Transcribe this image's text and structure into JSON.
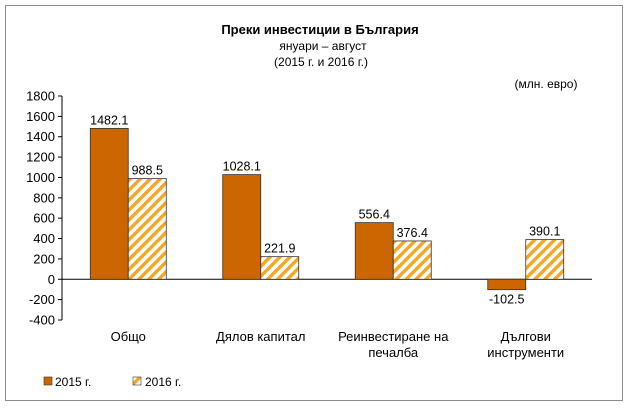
{
  "chart_data": {
    "type": "bar",
    "title": "Преки  инвестиции в България",
    "subtitle_lines": [
      "януари – август",
      "(2015 г. и 2016 г.)"
    ],
    "unit_label": "(млн. евро)",
    "ylim": [
      -400,
      1800
    ],
    "yticks": [
      "1800",
      "1600",
      "1400",
      "1200",
      "1000",
      "800",
      "600",
      "400",
      "200",
      "0",
      "-200",
      "-400"
    ],
    "grid": false,
    "legend_position": "bottom-left",
    "categories": [
      [
        "Общо"
      ],
      [
        "Дялов капитал"
      ],
      [
        "Реинвестиране на",
        "печалба"
      ],
      [
        "Дългови",
        "инструменти"
      ]
    ],
    "series": [
      {
        "name": "2015 г.",
        "values": [
          1482.1,
          1028.1,
          556.4,
          -102.5
        ],
        "labels": [
          "1482.1",
          "1028.1",
          "556.4",
          "-102.5"
        ],
        "color": "#cc6600"
      },
      {
        "name": "2016 г.",
        "values": [
          988.5,
          221.9,
          376.4,
          390.1
        ],
        "labels": [
          "988.5",
          "221.9",
          "376.4",
          "390.1"
        ],
        "color": "#f5a623"
      }
    ]
  }
}
